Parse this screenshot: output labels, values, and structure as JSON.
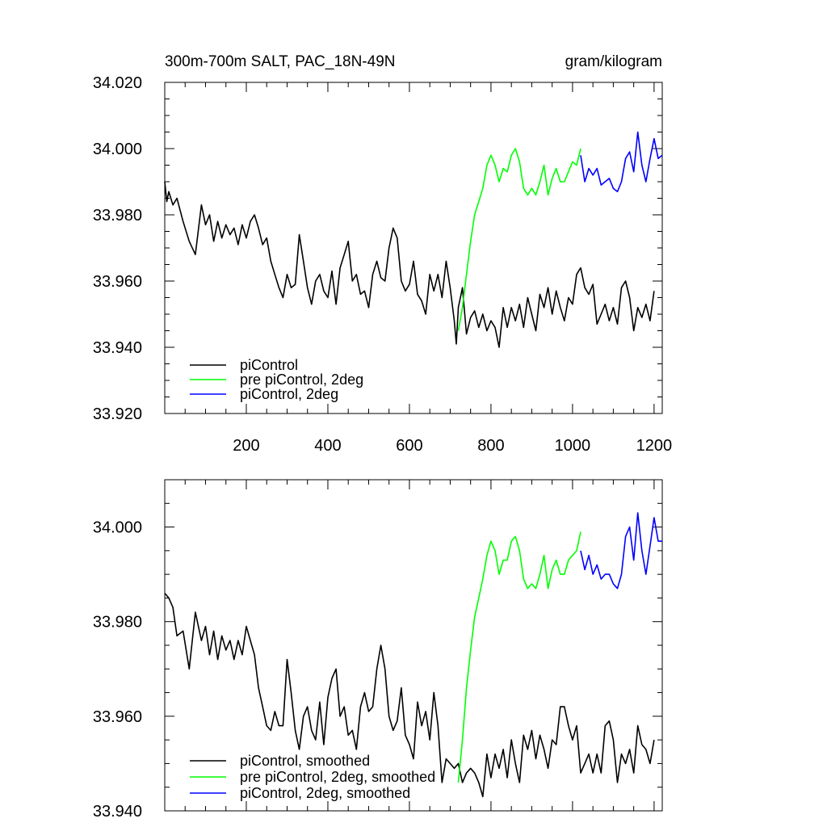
{
  "chart_data": [
    {
      "type": "line",
      "title": "300m-700m SALT, PAC_18N-49N",
      "units": "gram/kilogram",
      "xlim": [
        0,
        1220
      ],
      "ylim": [
        33.92,
        34.02
      ],
      "xticks": [
        200,
        400,
        600,
        800,
        1000,
        1200
      ],
      "xtick_labels": [
        "200",
        "400",
        "600",
        "800",
        "1000",
        "1200"
      ],
      "yticks": [
        33.92,
        33.94,
        33.96,
        33.98,
        34.0,
        34.02
      ],
      "ytick_labels": [
        "33.920",
        "33.940",
        "33.960",
        "33.980",
        "34.000",
        "34.020"
      ],
      "legend_position": "bottom-left",
      "series": [
        {
          "name": "piControl",
          "color": "#000000",
          "x": [
            0,
            5,
            10,
            20,
            30,
            45,
            60,
            75,
            90,
            100,
            110,
            120,
            130,
            140,
            150,
            160,
            170,
            180,
            190,
            200,
            210,
            220,
            230,
            240,
            250,
            260,
            270,
            280,
            290,
            300,
            310,
            320,
            330,
            340,
            350,
            360,
            370,
            380,
            390,
            400,
            410,
            420,
            430,
            440,
            450,
            460,
            470,
            480,
            490,
            500,
            510,
            520,
            530,
            540,
            550,
            560,
            570,
            580,
            590,
            600,
            610,
            620,
            630,
            640,
            650,
            660,
            670,
            680,
            690,
            700,
            710,
            715,
            720,
            730,
            740,
            750,
            760,
            770,
            780,
            790,
            800,
            810,
            820,
            830,
            840,
            850,
            860,
            870,
            880,
            890,
            900,
            910,
            920,
            930,
            940,
            950,
            960,
            970,
            980,
            990,
            1000,
            1010,
            1020,
            1030,
            1040,
            1050,
            1060,
            1070,
            1080,
            1090,
            1100,
            1110,
            1120,
            1130,
            1140,
            1150,
            1160,
            1170,
            1180,
            1190,
            1200
          ],
          "y": [
            33.99,
            33.984,
            33.987,
            33.983,
            33.985,
            33.978,
            33.972,
            33.968,
            33.983,
            33.977,
            33.98,
            33.972,
            33.978,
            33.973,
            33.977,
            33.974,
            33.976,
            33.971,
            33.977,
            33.973,
            33.978,
            33.98,
            33.976,
            33.971,
            33.973,
            33.966,
            33.962,
            33.958,
            33.955,
            33.962,
            33.958,
            33.959,
            33.974,
            33.966,
            33.958,
            33.953,
            33.96,
            33.962,
            33.957,
            33.955,
            33.963,
            33.953,
            33.964,
            33.968,
            33.972,
            33.96,
            33.962,
            33.956,
            33.957,
            33.952,
            33.962,
            33.966,
            33.961,
            33.96,
            33.97,
            33.976,
            33.973,
            33.96,
            33.957,
            33.959,
            33.966,
            33.956,
            33.954,
            33.95,
            33.962,
            33.957,
            33.962,
            33.955,
            33.966,
            33.958,
            33.948,
            33.941,
            33.952,
            33.958,
            33.944,
            33.949,
            33.951,
            33.946,
            33.95,
            33.945,
            33.948,
            33.946,
            33.94,
            33.952,
            33.946,
            33.952,
            33.948,
            33.953,
            33.946,
            33.955,
            33.95,
            33.945,
            33.956,
            33.952,
            33.958,
            33.95,
            33.957,
            33.952,
            33.948,
            33.955,
            33.953,
            33.962,
            33.964,
            33.958,
            33.956,
            33.959,
            33.947,
            33.95,
            33.953,
            33.948,
            33.952,
            33.947,
            33.958,
            33.96,
            33.955,
            33.945,
            33.952,
            33.949,
            33.953,
            33.948,
            33.957
          ]
        },
        {
          "name": "pre piControl, 2deg",
          "color": "#00ff00",
          "x": [
            720,
            730,
            740,
            750,
            760,
            770,
            780,
            790,
            800,
            810,
            820,
            830,
            840,
            850,
            860,
            870,
            880,
            890,
            900,
            910,
            920,
            930,
            940,
            950,
            960,
            970,
            980,
            990,
            1000,
            1010,
            1020
          ],
          "y": [
            33.945,
            33.952,
            33.962,
            33.972,
            33.98,
            33.984,
            33.988,
            33.995,
            33.998,
            33.995,
            33.99,
            33.994,
            33.993,
            33.998,
            34.0,
            33.996,
            33.988,
            33.986,
            33.988,
            33.986,
            33.99,
            33.995,
            33.986,
            33.991,
            33.994,
            33.99,
            33.99,
            33.993,
            33.996,
            33.995,
            34.0
          ]
        },
        {
          "name": "piControl, 2deg",
          "color": "#0000ff",
          "x": [
            1020,
            1030,
            1040,
            1050,
            1060,
            1070,
            1080,
            1090,
            1100,
            1110,
            1120,
            1130,
            1140,
            1150,
            1160,
            1170,
            1180,
            1190,
            1200,
            1210,
            1220
          ],
          "y": [
            33.998,
            33.99,
            33.994,
            33.992,
            33.994,
            33.989,
            33.99,
            33.991,
            33.988,
            33.987,
            33.99,
            33.997,
            33.999,
            33.993,
            34.005,
            33.995,
            33.99,
            33.997,
            34.003,
            33.997,
            33.998
          ]
        }
      ]
    },
    {
      "type": "line",
      "xlim": [
        0,
        1220
      ],
      "ylim": [
        33.94,
        34.01
      ],
      "xticks": [
        200,
        400,
        600,
        800,
        1000,
        1200
      ],
      "yticks": [
        33.94,
        33.96,
        33.98,
        34.0
      ],
      "ytick_labels": [
        "33.940",
        "33.960",
        "33.980",
        "34.000"
      ],
      "legend_position": "bottom-left",
      "series": [
        {
          "name": "piControl, smoothed",
          "color": "#000000",
          "x": [
            0,
            10,
            20,
            30,
            45,
            60,
            75,
            90,
            100,
            110,
            120,
            130,
            140,
            150,
            160,
            170,
            180,
            190,
            200,
            210,
            220,
            230,
            240,
            250,
            260,
            270,
            280,
            290,
            300,
            310,
            320,
            330,
            340,
            350,
            360,
            370,
            380,
            390,
            400,
            410,
            420,
            430,
            440,
            450,
            460,
            470,
            480,
            490,
            500,
            510,
            520,
            530,
            540,
            550,
            560,
            570,
            580,
            590,
            600,
            610,
            620,
            630,
            640,
            650,
            660,
            670,
            680,
            690,
            700,
            710,
            720,
            730,
            740,
            750,
            760,
            770,
            780,
            790,
            800,
            810,
            820,
            830,
            840,
            850,
            860,
            870,
            880,
            890,
            900,
            910,
            920,
            930,
            940,
            950,
            960,
            970,
            980,
            990,
            1000,
            1010,
            1020,
            1030,
            1040,
            1050,
            1060,
            1070,
            1080,
            1090,
            1100,
            1110,
            1120,
            1130,
            1140,
            1150,
            1160,
            1170,
            1180,
            1190,
            1200
          ],
          "y": [
            33.986,
            33.985,
            33.983,
            33.977,
            33.978,
            33.97,
            33.982,
            33.976,
            33.979,
            33.973,
            33.978,
            33.972,
            33.977,
            33.974,
            33.976,
            33.972,
            33.976,
            33.973,
            33.979,
            33.976,
            33.973,
            33.966,
            33.962,
            33.958,
            33.957,
            33.961,
            33.958,
            33.958,
            33.972,
            33.965,
            33.957,
            33.953,
            33.96,
            33.962,
            33.957,
            33.955,
            33.963,
            33.954,
            33.964,
            33.968,
            33.97,
            33.96,
            33.962,
            33.956,
            33.957,
            33.953,
            33.962,
            33.965,
            33.961,
            33.962,
            33.97,
            33.975,
            33.97,
            33.96,
            33.957,
            33.959,
            33.966,
            33.956,
            33.954,
            33.951,
            33.963,
            33.958,
            33.961,
            33.955,
            33.965,
            33.958,
            33.946,
            33.951,
            33.95,
            33.949,
            33.95,
            33.946,
            33.948,
            33.949,
            33.948,
            33.946,
            33.943,
            33.952,
            33.947,
            33.952,
            33.949,
            33.953,
            33.947,
            33.955,
            33.95,
            33.946,
            33.956,
            33.953,
            33.957,
            33.951,
            33.956,
            33.953,
            33.949,
            33.955,
            33.954,
            33.962,
            33.962,
            33.958,
            33.955,
            33.958,
            33.948,
            33.95,
            33.952,
            33.948,
            33.952,
            33.948,
            33.958,
            33.959,
            33.955,
            33.946,
            33.952,
            33.95,
            33.953,
            33.948,
            33.958,
            33.954,
            33.953,
            33.95,
            33.955
          ]
        },
        {
          "name": "pre piControl, 2deg, smoothed",
          "color": "#00ff00",
          "x": [
            720,
            730,
            740,
            750,
            760,
            770,
            780,
            790,
            800,
            810,
            820,
            830,
            840,
            850,
            860,
            870,
            880,
            890,
            900,
            910,
            920,
            930,
            940,
            950,
            960,
            970,
            980,
            990,
            1000,
            1010,
            1020
          ],
          "y": [
            33.946,
            33.955,
            33.966,
            33.974,
            33.981,
            33.985,
            33.989,
            33.994,
            33.997,
            33.995,
            33.99,
            33.993,
            33.993,
            33.997,
            33.998,
            33.995,
            33.989,
            33.987,
            33.988,
            33.987,
            33.99,
            33.994,
            33.987,
            33.991,
            33.993,
            33.99,
            33.99,
            33.993,
            33.994,
            33.995,
            33.999
          ]
        },
        {
          "name": "piControl, 2deg, smoothed",
          "color": "#0000ff",
          "x": [
            1020,
            1030,
            1040,
            1050,
            1060,
            1070,
            1080,
            1090,
            1100,
            1110,
            1120,
            1130,
            1140,
            1150,
            1160,
            1170,
            1180,
            1190,
            1200,
            1210,
            1220
          ],
          "y": [
            33.995,
            33.991,
            33.994,
            33.99,
            33.992,
            33.989,
            33.99,
            33.99,
            33.988,
            33.987,
            33.99,
            33.998,
            34.0,
            33.993,
            34.003,
            33.995,
            33.99,
            33.996,
            34.002,
            33.997,
            33.997
          ]
        }
      ]
    }
  ]
}
